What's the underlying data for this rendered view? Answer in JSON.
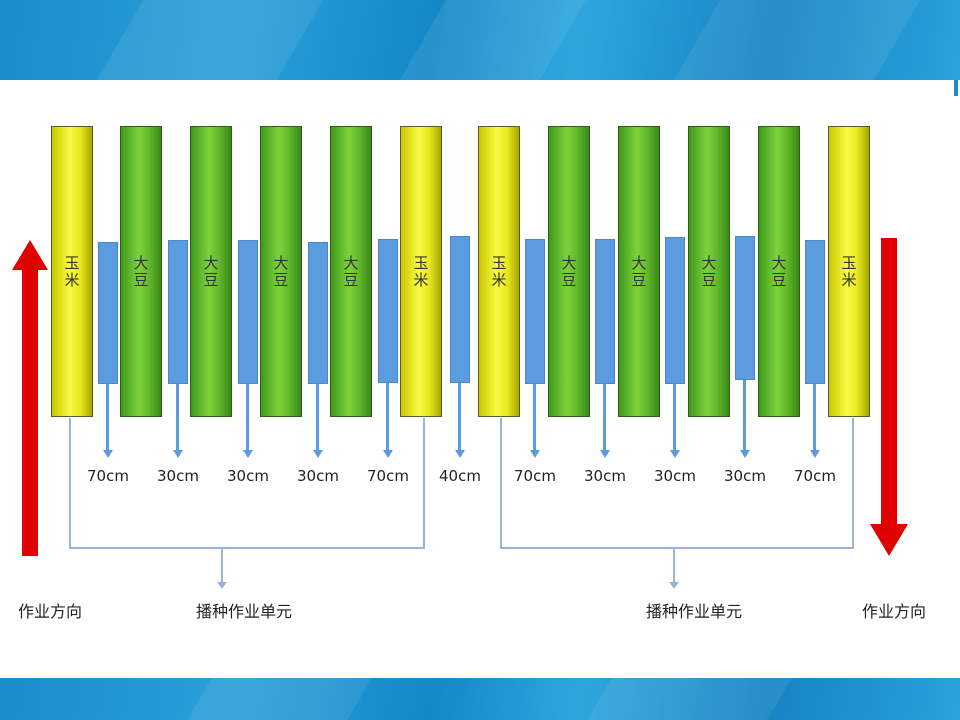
{
  "crops": {
    "corn": "玉米",
    "soybean": "大豆"
  },
  "columns": [
    "corn",
    "soybean",
    "soybean",
    "soybean",
    "soybean",
    "corn",
    "corn",
    "soybean",
    "soybean",
    "soybean",
    "soybean",
    "corn"
  ],
  "distances": [
    "70cm",
    "30cm",
    "30cm",
    "30cm",
    "70cm",
    "40cm",
    "70cm",
    "30cm",
    "30cm",
    "30cm",
    "70cm"
  ],
  "labels": {
    "direction_left": "作业方向",
    "direction_right": "作业方向",
    "unit_left": "播种作业单元",
    "unit_right": "播种作业单元"
  },
  "colors": {
    "corn": "#e8e820",
    "soybean": "#6cc030",
    "row_strip": "#5b9be0",
    "arrow": "#e00000",
    "banner": "#1b8ccc"
  }
}
